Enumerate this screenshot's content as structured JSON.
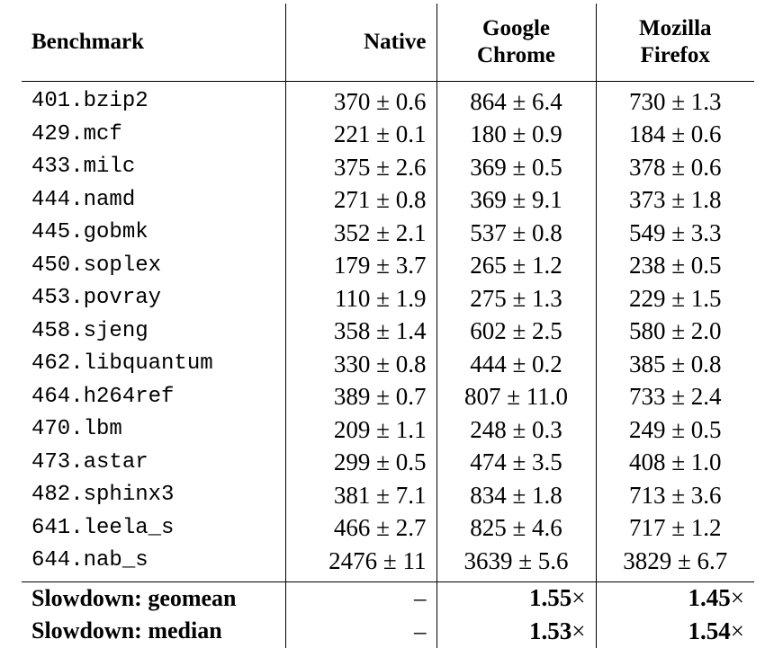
{
  "table": {
    "headers": {
      "benchmark": "Benchmark",
      "native": "Native",
      "chrome_line1": "Google",
      "chrome_line2": "Chrome",
      "firefox_line1": "Mozilla",
      "firefox_line2": "Firefox"
    },
    "rows": [
      {
        "name": "401.bzip2",
        "native": "370 ± 0.6",
        "chrome": "864 ± 6.4",
        "firefox": "730 ± 1.3"
      },
      {
        "name": "429.mcf",
        "native": "221 ± 0.1",
        "chrome": "180 ± 0.9",
        "firefox": "184 ± 0.6"
      },
      {
        "name": "433.milc",
        "native": "375 ± 2.6",
        "chrome": "369 ± 0.5",
        "firefox": "378 ± 0.6"
      },
      {
        "name": "444.namd",
        "native": "271 ± 0.8",
        "chrome": "369 ± 9.1",
        "firefox": "373 ± 1.8"
      },
      {
        "name": "445.gobmk",
        "native": "352 ± 2.1",
        "chrome": "537 ± 0.8",
        "firefox": "549 ± 3.3"
      },
      {
        "name": "450.soplex",
        "native": "179 ± 3.7",
        "chrome": "265 ± 1.2",
        "firefox": "238 ± 0.5"
      },
      {
        "name": "453.povray",
        "native": "110 ± 1.9",
        "chrome": "275 ± 1.3",
        "firefox": "229 ± 1.5"
      },
      {
        "name": "458.sjeng",
        "native": "358 ± 1.4",
        "chrome": "602 ± 2.5",
        "firefox": "580 ± 2.0"
      },
      {
        "name": "462.libquantum",
        "native": "330 ± 0.8",
        "chrome": "444 ± 0.2",
        "firefox": "385 ± 0.8"
      },
      {
        "name": "464.h264ref",
        "native": "389 ± 0.7",
        "chrome": "807 ± 11.0",
        "firefox": "733 ± 2.4"
      },
      {
        "name": "470.lbm",
        "native": "209 ± 1.1",
        "chrome": "248 ± 0.3",
        "firefox": "249 ± 0.5"
      },
      {
        "name": "473.astar",
        "native": "299 ± 0.5",
        "chrome": "474 ± 3.5",
        "firefox": "408 ± 1.0"
      },
      {
        "name": "482.sphinx3",
        "native": "381 ± 7.1",
        "chrome": "834 ± 1.8",
        "firefox": "713 ± 3.6"
      },
      {
        "name": "641.leela_s",
        "native": "466 ± 2.7",
        "chrome": "825 ± 4.6",
        "firefox": "717 ± 1.2"
      },
      {
        "name": "644.nab_s",
        "native": "2476 ± 11",
        "chrome": "3639 ± 5.6",
        "firefox": "3829 ± 6.7"
      }
    ],
    "summary": [
      {
        "label": "Slowdown: geomean",
        "native": "–",
        "chrome_value": "1.55",
        "firefox_value": "1.45",
        "suffix": "×"
      },
      {
        "label": "Slowdown: median",
        "native": "–",
        "chrome_value": "1.53",
        "firefox_value": "1.54",
        "suffix": "×"
      }
    ]
  }
}
